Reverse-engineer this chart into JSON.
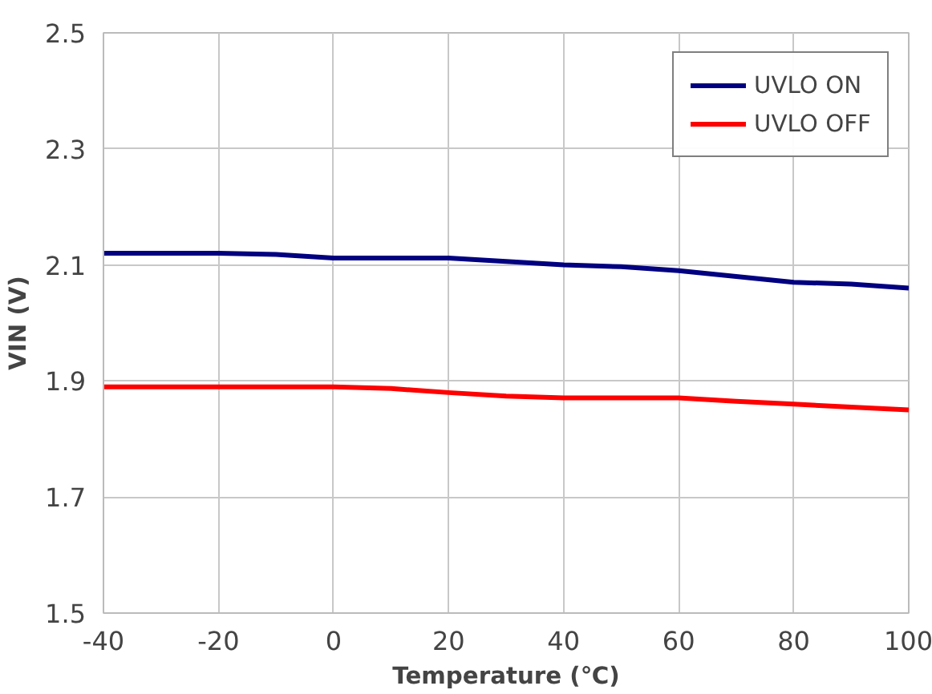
{
  "chart_data": {
    "type": "line",
    "xlabel": "Temperature (℃)",
    "ylabel": "VIN (V)",
    "x": [
      -40,
      -20,
      -10,
      0,
      10,
      20,
      30,
      40,
      50,
      60,
      70,
      80,
      90,
      100
    ],
    "series": [
      {
        "name": "UVLO ON",
        "color": "#000080",
        "values": [
          2.12,
          2.12,
          2.118,
          2.112,
          2.112,
          2.112,
          2.106,
          2.1,
          2.097,
          2.09,
          2.08,
          2.07,
          2.067,
          2.06
        ]
      },
      {
        "name": "UVLO OFF",
        "color": "#ff0000",
        "values": [
          1.89,
          1.89,
          1.89,
          1.89,
          1.887,
          1.88,
          1.874,
          1.871,
          1.871,
          1.871,
          1.865,
          1.86,
          1.855,
          1.85
        ]
      }
    ],
    "xlim": [
      -40,
      100
    ],
    "xticks": [
      -40,
      -20,
      0,
      20,
      40,
      60,
      80,
      100
    ],
    "ylim": [
      1.5,
      2.5
    ],
    "yticks": [
      1.5,
      1.7,
      1.9,
      2.1,
      2.3,
      2.5
    ],
    "grid": true,
    "legend": "top right",
    "marker": "none",
    "line_style": "solid"
  }
}
